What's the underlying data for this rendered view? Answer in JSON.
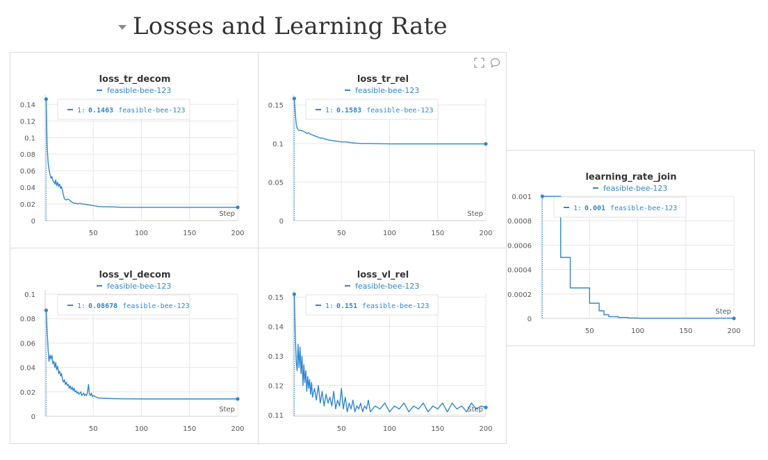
{
  "section": {
    "title": "Losses and Learning Rate"
  },
  "colors": {
    "series": "#2f86d4",
    "grid": "#e6e6e6",
    "axis": "#555555",
    "border": "#d9d9d9"
  },
  "toolbar": {
    "icons": [
      "expand-icon",
      "comment-icon"
    ]
  },
  "chart_data": [
    {
      "id": "loss_tr_decom",
      "type": "line",
      "title": "loss_tr_decom",
      "legend": "feasible-bee-123",
      "xlabel": "Step",
      "xlim": [
        0,
        200
      ],
      "ylim": [
        0,
        0.147
      ],
      "xticks": [
        50,
        100,
        150,
        200
      ],
      "yticks": [
        0,
        0.02,
        0.04,
        0.06,
        0.08,
        0.1,
        0.12,
        0.14
      ],
      "ytick_labels": [
        "0",
        "0.02",
        "0.04",
        "0.06",
        "0.08",
        "0.1",
        "0.12",
        "0.14"
      ],
      "tooltip": {
        "step": "1:",
        "value": "0.1463",
        "run": "feasible-bee-123"
      },
      "series": [
        {
          "x": [
            1,
            2,
            3,
            4,
            5,
            6,
            7,
            8,
            9,
            10,
            11,
            12,
            13,
            14,
            15,
            16,
            17,
            18,
            19,
            20,
            22,
            24,
            26,
            28,
            30,
            32,
            34,
            36,
            38,
            40,
            45,
            50,
            55,
            60,
            70,
            80,
            100,
            120,
            150,
            180,
            200
          ],
          "values": [
            0.1463,
            0.09,
            0.07,
            0.062,
            0.056,
            0.051,
            0.053,
            0.048,
            0.047,
            0.044,
            0.049,
            0.042,
            0.046,
            0.041,
            0.044,
            0.039,
            0.041,
            0.036,
            0.031,
            0.026,
            0.025,
            0.026,
            0.024,
            0.022,
            0.021,
            0.021,
            0.02,
            0.021,
            0.02,
            0.02,
            0.019,
            0.018,
            0.017,
            0.0168,
            0.0165,
            0.016,
            0.016,
            0.016,
            0.016,
            0.016,
            0.016
          ]
        }
      ]
    },
    {
      "id": "loss_tr_rel",
      "type": "line",
      "title": "loss_tr_rel",
      "legend": "feasible-bee-123",
      "xlabel": "Step",
      "xlim": [
        0,
        200
      ],
      "ylim": [
        0,
        0.1583
      ],
      "xticks": [
        50,
        100,
        150,
        200
      ],
      "yticks": [
        0,
        0.05,
        0.1,
        0.15
      ],
      "ytick_labels": [
        "0",
        "0.05",
        "0.1",
        "0.15"
      ],
      "tooltip": {
        "step": "1:",
        "value": "0.1583",
        "run": "feasible-bee-123"
      },
      "series": [
        {
          "x": [
            1,
            2,
            3,
            4,
            5,
            6,
            8,
            10,
            12,
            14,
            16,
            18,
            20,
            22,
            24,
            26,
            28,
            30,
            35,
            40,
            45,
            50,
            55,
            60,
            70,
            80,
            100,
            120,
            150,
            180,
            200
          ],
          "values": [
            0.1583,
            0.14,
            0.125,
            0.12,
            0.118,
            0.117,
            0.117,
            0.116,
            0.115,
            0.113,
            0.114,
            0.112,
            0.111,
            0.11,
            0.109,
            0.108,
            0.107,
            0.107,
            0.105,
            0.104,
            0.103,
            0.102,
            0.102,
            0.101,
            0.1,
            0.1,
            0.0995,
            0.0995,
            0.0995,
            0.0995,
            0.0995
          ]
        }
      ]
    },
    {
      "id": "loss_vl_decom",
      "type": "line",
      "title": "loss_vl_decom",
      "legend": "feasible-bee-123",
      "xlabel": "Step",
      "xlim": [
        0,
        200
      ],
      "ylim": [
        0,
        0.1
      ],
      "xticks": [
        50,
        100,
        150,
        200
      ],
      "yticks": [
        0,
        0.02,
        0.04,
        0.06,
        0.08,
        0.1
      ],
      "ytick_labels": [
        "0",
        "0.02",
        "0.04",
        "0.06",
        "0.08",
        "0.1"
      ],
      "tooltip": {
        "step": "1:",
        "value": "0.08678",
        "run": "feasible-bee-123"
      },
      "series": [
        {
          "x": [
            1,
            2,
            3,
            4,
            5,
            6,
            7,
            8,
            9,
            10,
            11,
            12,
            13,
            14,
            15,
            16,
            17,
            18,
            19,
            20,
            21,
            22,
            23,
            24,
            25,
            26,
            27,
            28,
            29,
            30,
            31,
            32,
            33,
            34,
            35,
            36,
            37,
            38,
            39,
            40,
            41,
            42,
            43,
            44,
            45,
            46,
            47,
            48,
            49,
            50,
            55,
            60,
            70,
            80,
            100,
            120,
            150,
            180,
            200
          ],
          "values": [
            0.08678,
            0.07,
            0.055,
            0.045,
            0.05,
            0.047,
            0.05,
            0.043,
            0.045,
            0.04,
            0.044,
            0.038,
            0.041,
            0.035,
            0.037,
            0.033,
            0.035,
            0.03,
            0.028,
            0.03,
            0.026,
            0.028,
            0.025,
            0.026,
            0.023,
            0.025,
            0.022,
            0.024,
            0.021,
            0.023,
            0.02,
            0.021,
            0.019,
            0.02,
            0.018,
            0.019,
            0.02,
            0.017,
            0.018,
            0.019,
            0.017,
            0.018,
            0.017,
            0.02,
            0.026,
            0.018,
            0.017,
            0.019,
            0.016,
            0.017,
            0.015,
            0.0148,
            0.0145,
            0.0143,
            0.0142,
            0.0142,
            0.0142,
            0.0142,
            0.0142
          ]
        }
      ]
    },
    {
      "id": "loss_vl_rel",
      "type": "line",
      "title": "loss_vl_rel",
      "legend": "feasible-bee-123",
      "xlabel": "Step",
      "xlim": [
        0,
        200
      ],
      "ylim": [
        0.1095,
        0.151
      ],
      "xticks": [
        50,
        100,
        150,
        200
      ],
      "yticks": [
        0.11,
        0.12,
        0.13,
        0.14,
        0.15
      ],
      "ytick_labels": [
        "0.11",
        "0.12",
        "0.13",
        "0.14",
        "0.15"
      ],
      "tooltip": {
        "step": "1:",
        "value": "0.151",
        "run": "feasible-bee-123"
      },
      "series": [
        {
          "x": [
            1,
            2,
            3,
            4,
            5,
            6,
            7,
            8,
            9,
            10,
            11,
            12,
            13,
            14,
            15,
            16,
            17,
            18,
            19,
            20,
            22,
            24,
            26,
            28,
            30,
            32,
            34,
            36,
            38,
            40,
            42,
            44,
            46,
            48,
            50,
            52,
            54,
            56,
            58,
            60,
            62,
            64,
            66,
            68,
            70,
            72,
            74,
            76,
            78,
            80,
            85,
            90,
            95,
            100,
            105,
            110,
            115,
            120,
            125,
            130,
            135,
            140,
            145,
            150,
            155,
            160,
            165,
            170,
            175,
            180,
            185,
            190,
            195,
            200
          ],
          "values": [
            0.151,
            0.138,
            0.128,
            0.125,
            0.134,
            0.126,
            0.133,
            0.124,
            0.13,
            0.12,
            0.127,
            0.121,
            0.125,
            0.118,
            0.123,
            0.119,
            0.122,
            0.117,
            0.121,
            0.116,
            0.119,
            0.115,
            0.12,
            0.114,
            0.118,
            0.113,
            0.117,
            0.114,
            0.116,
            0.113,
            0.118,
            0.112,
            0.115,
            0.113,
            0.119,
            0.112,
            0.116,
            0.111,
            0.114,
            0.112,
            0.115,
            0.111,
            0.113,
            0.112,
            0.114,
            0.111,
            0.113,
            0.112,
            0.115,
            0.111,
            0.113,
            0.112,
            0.114,
            0.111,
            0.113,
            0.112,
            0.114,
            0.111,
            0.113,
            0.112,
            0.114,
            0.111,
            0.113,
            0.112,
            0.114,
            0.111,
            0.114,
            0.112,
            0.113,
            0.111,
            0.114,
            0.112,
            0.113,
            0.1125
          ]
        }
      ]
    },
    {
      "id": "learning_rate_join",
      "type": "line",
      "title": "learning_rate_join",
      "legend": "feasible-bee-123",
      "xlabel": "Step",
      "xlim": [
        0,
        200
      ],
      "ylim": [
        0,
        0.001
      ],
      "xticks": [
        50,
        100,
        150,
        200
      ],
      "yticks": [
        0,
        0.0002,
        0.0004,
        0.0006,
        0.0008,
        0.001
      ],
      "ytick_labels": [
        "0",
        "0.0002",
        "0.0004",
        "0.0006",
        "0.0008",
        "0.001"
      ],
      "tooltip": {
        "step": "1:",
        "value": "0.001",
        "run": "feasible-bee-123"
      },
      "series": [
        {
          "step": true,
          "x": [
            1,
            10,
            20,
            30,
            50,
            60,
            65,
            70,
            80,
            90,
            100,
            200
          ],
          "values": [
            0.001,
            0.001,
            0.0005,
            0.00025,
            0.000125,
            6.25e-05,
            3e-05,
            1.5e-05,
            7.8e-06,
            3.9e-06,
            2e-06,
            5e-07
          ]
        }
      ]
    }
  ]
}
